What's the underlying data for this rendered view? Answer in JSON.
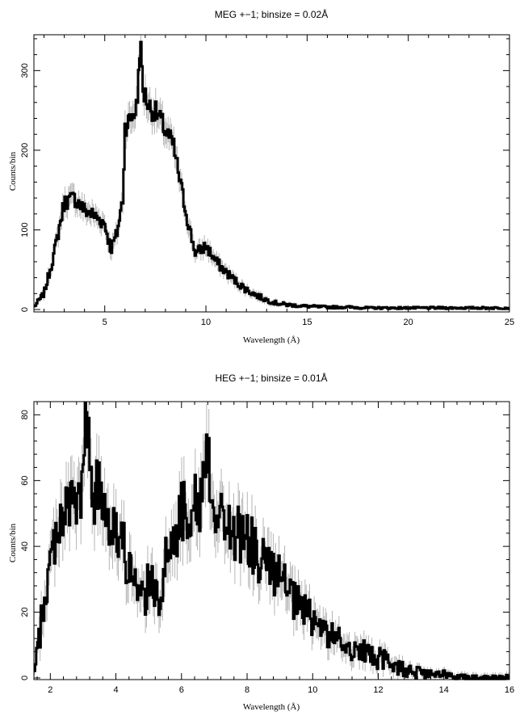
{
  "chart_data": [
    {
      "type": "line",
      "title": "MEG +−1; binsize = 0.02Å",
      "xlabel": "Wavelength (Å)",
      "ylabel": "Counts/bin",
      "xlim": [
        1.5,
        25
      ],
      "ylim": [
        -3,
        345
      ],
      "xticks": [
        5,
        10,
        15,
        20,
        25
      ],
      "yticks": [
        0,
        100,
        200,
        300
      ],
      "grid": false,
      "series": [
        {
          "style": "histogram with error band",
          "x": [
            1.5,
            2.0,
            2.5,
            3.0,
            3.5,
            4.0,
            4.5,
            5.0,
            5.3,
            5.6,
            5.9,
            6.0,
            6.3,
            6.6,
            6.75,
            6.9,
            7.2,
            7.6,
            8.0,
            8.4,
            8.8,
            9.2,
            9.5,
            10.0,
            10.5,
            11.0,
            11.5,
            12.0,
            12.5,
            13.0,
            13.5,
            14.0,
            14.5,
            15.0,
            16.0,
            17.0,
            18.0,
            20.0,
            22.0,
            25.0
          ],
          "values": [
            3,
            20,
            70,
            135,
            140,
            125,
            118,
            108,
            75,
            95,
            140,
            230,
            240,
            255,
            340,
            275,
            255,
            245,
            225,
            205,
            150,
            100,
            70,
            80,
            60,
            47,
            35,
            25,
            18,
            12,
            8,
            6,
            5,
            4,
            3,
            3,
            2,
            2,
            2,
            2
          ]
        }
      ]
    },
    {
      "type": "line",
      "title": "HEG +−1; binsize = 0.01Å",
      "xlabel": "Wavelength (Å)",
      "ylabel": "Counts/bin",
      "xlim": [
        1.5,
        16
      ],
      "ylim": [
        -0.5,
        84
      ],
      "xticks": [
        2,
        4,
        6,
        8,
        10,
        12,
        14,
        16
      ],
      "yticks": [
        0,
        20,
        40,
        60,
        80
      ],
      "grid": false,
      "series": [
        {
          "style": "histogram with error band",
          "x": [
            1.5,
            1.7,
            2.0,
            2.3,
            2.6,
            3.0,
            3.05,
            3.3,
            3.6,
            4.0,
            4.4,
            4.7,
            5.0,
            5.3,
            5.6,
            6.0,
            6.3,
            6.6,
            6.75,
            7.0,
            7.5,
            8.0,
            8.5,
            9.0,
            9.5,
            10.0,
            10.5,
            11.0,
            11.5,
            12.0,
            12.5,
            13.0,
            13.5,
            14.0,
            14.5,
            15.0,
            16.0
          ],
          "values": [
            0,
            15,
            35,
            50,
            52,
            55,
            82,
            57,
            55,
            45,
            35,
            22,
            28,
            25,
            38,
            50,
            53,
            52,
            73,
            52,
            45,
            42,
            35,
            30,
            22,
            18,
            13,
            10,
            8,
            6,
            4,
            2,
            1,
            1,
            0.5,
            0,
            0
          ]
        }
      ]
    }
  ]
}
